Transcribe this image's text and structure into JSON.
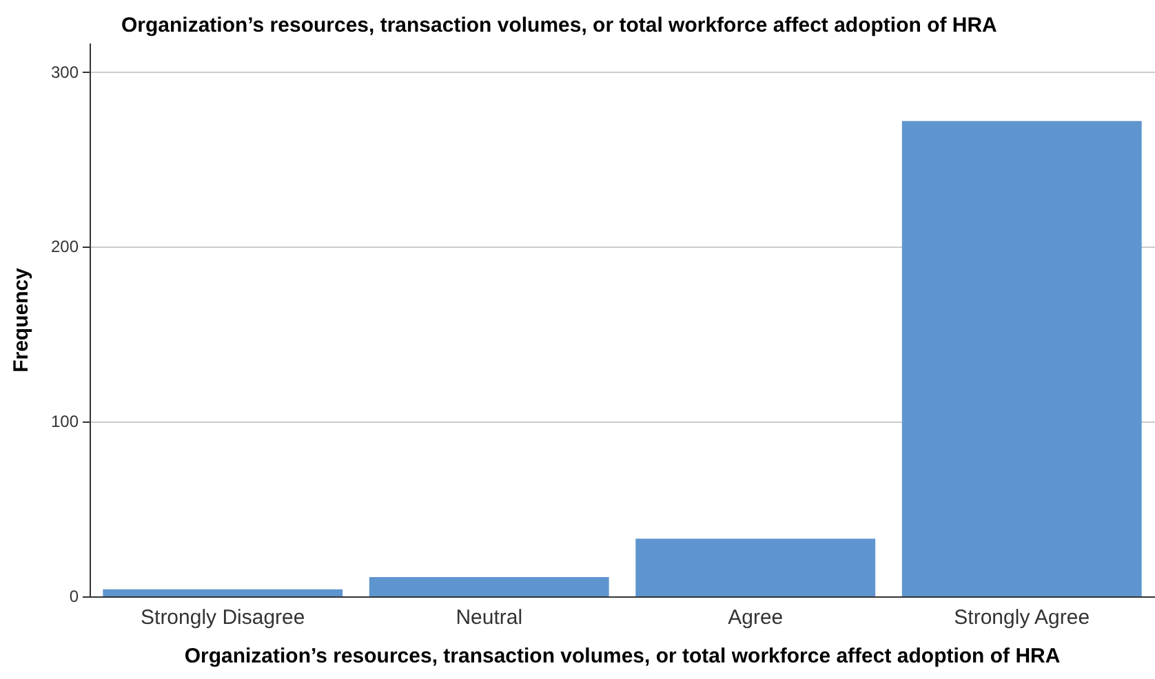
{
  "chart_data": {
    "type": "bar",
    "title": "Organization’s resources, transaction volumes, or total workforce affect adoption of HRA",
    "xlabel": "Organization’s resources, transaction volumes, or total workforce affect adoption of HRA",
    "ylabel": "Frequency",
    "categories": [
      "Strongly Disagree",
      "Neutral",
      "Agree",
      "Strongly Agree"
    ],
    "values": [
      4,
      11,
      33,
      272
    ],
    "color": "#5f95cf",
    "ylim": [
      0,
      316
    ],
    "yticks": [
      0,
      100,
      200,
      300
    ],
    "grid": "y"
  }
}
